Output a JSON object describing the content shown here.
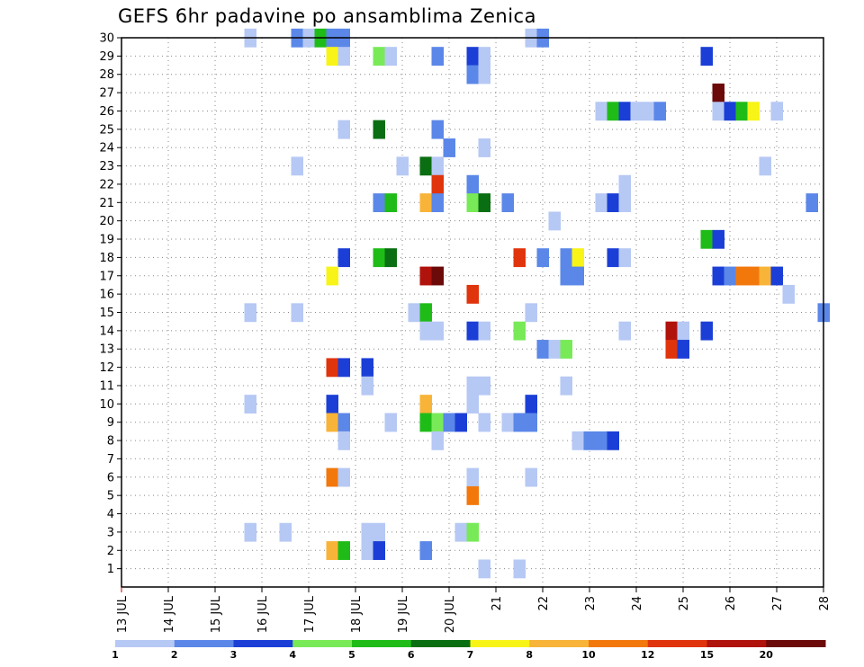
{
  "chart_data": {
    "type": "heatmap",
    "title": "GEFS 6hr padavine po ansamblima Zenica",
    "xlabel": "",
    "ylabel": "",
    "x_range": [
      "13 JUL 00Z",
      "28 JUL 00Z"
    ],
    "x_ticks": [
      "13 JUL",
      "14 JUL",
      "15 JUL",
      "16 JUL",
      "17 JUL",
      "18 JUL",
      "19 JUL",
      "20 JUL",
      "21",
      "22",
      "23",
      "24",
      "25",
      "26",
      "27",
      "28"
    ],
    "y_ticks": [
      "1",
      "2",
      "3",
      "4",
      "5",
      "6",
      "7",
      "8",
      "9",
      "10",
      "11",
      "12",
      "13",
      "14",
      "15",
      "16",
      "17",
      "18",
      "19",
      "20",
      "21",
      "22",
      "23",
      "24",
      "25",
      "26",
      "27",
      "28",
      "29",
      "30"
    ],
    "ylim": [
      0,
      30
    ],
    "grid": true,
    "legend_placement": "bottom",
    "legend_labels": [
      "1",
      "2",
      "3",
      "4",
      "5",
      "6",
      "7",
      "8",
      "10",
      "12",
      "15",
      "20"
    ],
    "legend_colors": [
      "#b6c8f4",
      "#5b87e8",
      "#1b3fd6",
      "#78ea58",
      "#1fbc18",
      "#0a6e12",
      "#f8f418",
      "#f8b438",
      "#f2780c",
      "#e0340c",
      "#b0120c",
      "#6c0a0a"
    ],
    "cell_format": "[day_offset_from_13_JUL, member, value_mm]",
    "cells": [
      [
        2.75,
        30,
        1.5
      ],
      [
        3.75,
        30,
        2.5
      ],
      [
        4.0,
        30,
        1.5
      ],
      [
        4.25,
        30,
        5.5
      ],
      [
        4.5,
        30,
        2.5
      ],
      [
        4.75,
        30,
        2.5
      ],
      [
        8.75,
        30,
        1.5
      ],
      [
        9.0,
        30,
        2.5
      ],
      [
        4.5,
        29,
        7.5
      ],
      [
        4.75,
        29,
        1.5
      ],
      [
        5.5,
        29,
        4.5
      ],
      [
        5.75,
        29,
        1.5
      ],
      [
        6.75,
        29,
        2.5
      ],
      [
        7.5,
        29,
        3.5
      ],
      [
        7.75,
        29,
        1.5
      ],
      [
        12.5,
        29,
        3.5
      ],
      [
        7.5,
        28,
        2.5
      ],
      [
        7.75,
        28,
        1.5
      ],
      [
        12.75,
        27,
        25
      ],
      [
        10.25,
        26,
        1.5
      ],
      [
        10.5,
        26,
        5.5
      ],
      [
        10.75,
        26,
        3.5
      ],
      [
        11.0,
        26,
        1.5
      ],
      [
        11.25,
        26,
        1.5
      ],
      [
        11.5,
        26,
        2.5
      ],
      [
        12.75,
        26,
        1.5
      ],
      [
        13.0,
        26,
        3.5
      ],
      [
        13.25,
        26,
        5.5
      ],
      [
        13.5,
        26,
        7.5
      ],
      [
        14.0,
        26,
        1.5
      ],
      [
        4.75,
        25,
        1.5
      ],
      [
        5.5,
        25,
        6.5
      ],
      [
        6.75,
        25,
        2.5
      ],
      [
        7.0,
        24,
        2.5
      ],
      [
        7.75,
        24,
        1.5
      ],
      [
        3.75,
        23,
        1.5
      ],
      [
        6.0,
        23,
        1.5
      ],
      [
        6.5,
        23,
        6.5
      ],
      [
        6.75,
        23,
        1.5
      ],
      [
        13.75,
        23,
        1.5
      ],
      [
        6.75,
        22,
        13
      ],
      [
        7.5,
        22,
        2.5
      ],
      [
        10.75,
        22,
        1.5
      ],
      [
        5.5,
        21,
        2.5
      ],
      [
        5.75,
        21,
        5.5
      ],
      [
        6.5,
        21,
        9
      ],
      [
        6.75,
        21,
        2.5
      ],
      [
        7.5,
        21,
        4.5
      ],
      [
        7.75,
        21,
        6.5
      ],
      [
        8.25,
        21,
        2.5
      ],
      [
        10.25,
        21,
        1.5
      ],
      [
        10.5,
        21,
        3.5
      ],
      [
        10.75,
        21,
        1.5
      ],
      [
        14.75,
        21,
        2.5
      ],
      [
        9.25,
        20,
        1.5
      ],
      [
        12.5,
        19,
        5.5
      ],
      [
        12.75,
        19,
        3.5
      ],
      [
        4.75,
        18,
        3.5
      ],
      [
        5.5,
        18,
        5.5
      ],
      [
        5.75,
        18,
        6.5
      ],
      [
        8.5,
        18,
        13
      ],
      [
        9.0,
        18,
        2.5
      ],
      [
        9.5,
        18,
        2.5
      ],
      [
        9.75,
        18,
        7.5
      ],
      [
        10.5,
        18,
        3.5
      ],
      [
        10.75,
        18,
        1.5
      ],
      [
        4.5,
        17,
        7.5
      ],
      [
        6.5,
        17,
        17
      ],
      [
        6.75,
        17,
        25
      ],
      [
        9.5,
        17,
        2.5
      ],
      [
        9.75,
        17,
        2.5
      ],
      [
        12.75,
        17,
        3.5
      ],
      [
        13.0,
        17,
        2.5
      ],
      [
        13.25,
        17,
        11
      ],
      [
        13.5,
        17,
        11
      ],
      [
        13.75,
        17,
        9
      ],
      [
        14.0,
        17,
        3.5
      ],
      [
        7.5,
        16,
        13
      ],
      [
        14.25,
        16,
        1.5
      ],
      [
        2.75,
        15,
        1.5
      ],
      [
        3.75,
        15,
        1.5
      ],
      [
        6.25,
        15,
        1.5
      ],
      [
        6.5,
        15,
        5.5
      ],
      [
        8.75,
        15,
        1.5
      ],
      [
        15.0,
        15,
        2.5
      ],
      [
        6.5,
        14,
        1.5
      ],
      [
        6.75,
        14,
        1.5
      ],
      [
        7.5,
        14,
        3.5
      ],
      [
        7.75,
        14,
        1.5
      ],
      [
        8.5,
        14,
        4.5
      ],
      [
        10.75,
        14,
        1.5
      ],
      [
        11.75,
        14,
        17
      ],
      [
        12.0,
        14,
        1.5
      ],
      [
        12.5,
        14,
        3.5
      ],
      [
        9.0,
        13,
        2.5
      ],
      [
        9.25,
        13,
        1.5
      ],
      [
        9.5,
        13,
        4.5
      ],
      [
        11.75,
        13,
        13
      ],
      [
        12.0,
        13,
        3.5
      ],
      [
        4.5,
        12,
        13
      ],
      [
        4.75,
        12,
        3.5
      ],
      [
        5.25,
        12,
        3.5
      ],
      [
        5.25,
        11,
        1.5
      ],
      [
        7.5,
        11,
        1.5
      ],
      [
        7.75,
        11,
        1.5
      ],
      [
        9.5,
        11,
        1.5
      ],
      [
        2.75,
        10,
        1.5
      ],
      [
        4.5,
        10,
        3.5
      ],
      [
        6.5,
        10,
        9
      ],
      [
        7.5,
        10,
        1.5
      ],
      [
        8.75,
        10,
        3.5
      ],
      [
        4.5,
        9,
        9
      ],
      [
        4.75,
        9,
        2.5
      ],
      [
        5.75,
        9,
        1.5
      ],
      [
        6.5,
        9,
        5.5
      ],
      [
        6.75,
        9,
        4.5
      ],
      [
        7.0,
        9,
        2.5
      ],
      [
        7.25,
        9,
        3.5
      ],
      [
        7.75,
        9,
        1.5
      ],
      [
        8.25,
        9,
        1.5
      ],
      [
        8.5,
        9,
        2.5
      ],
      [
        8.75,
        9,
        2.5
      ],
      [
        4.75,
        8,
        1.5
      ],
      [
        6.75,
        8,
        1.5
      ],
      [
        9.75,
        8,
        1.5
      ],
      [
        10.0,
        8,
        2.5
      ],
      [
        10.25,
        8,
        2.5
      ],
      [
        10.5,
        8,
        3.5
      ],
      [
        4.5,
        6,
        11
      ],
      [
        4.75,
        6,
        1.5
      ],
      [
        7.5,
        6,
        1.5
      ],
      [
        8.75,
        6,
        1.5
      ],
      [
        7.5,
        5,
        11
      ],
      [
        2.75,
        3,
        1.5
      ],
      [
        3.5,
        3,
        1.5
      ],
      [
        5.25,
        3,
        1.5
      ],
      [
        5.5,
        3,
        1.5
      ],
      [
        7.25,
        3,
        1.5
      ],
      [
        7.5,
        3,
        4.5
      ],
      [
        4.5,
        2,
        9
      ],
      [
        4.75,
        2,
        5.5
      ],
      [
        5.25,
        2,
        1.5
      ],
      [
        5.5,
        2,
        3.5
      ],
      [
        6.5,
        2,
        2.5
      ],
      [
        7.75,
        1,
        1.5
      ],
      [
        8.5,
        1,
        1.5
      ]
    ]
  }
}
